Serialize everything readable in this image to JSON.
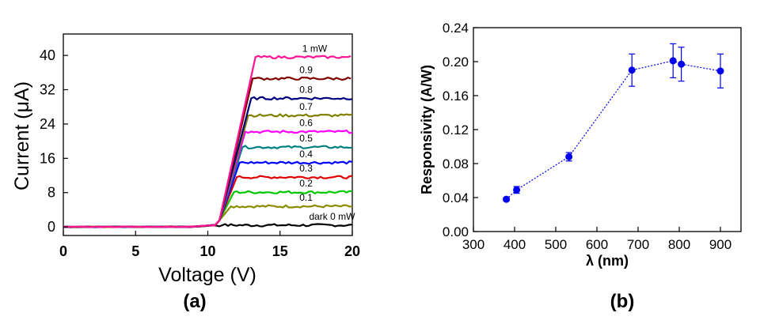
{
  "chart_data": [
    {
      "type": "line",
      "panel_label": "(a)",
      "xlabel": "Voltage (V)",
      "ylabel": "Current (μA)",
      "xlim": [
        0,
        20
      ],
      "ylim": [
        -2,
        45
      ],
      "xticks": [
        0,
        5,
        10,
        15,
        20
      ],
      "yticks": [
        0,
        8,
        16,
        24,
        32,
        40
      ],
      "grid": false,
      "onset_voltage": 10.6,
      "series": [
        {
          "name": "dark 0 mW",
          "color": "#000000",
          "plateau": 0.4,
          "step_end": 11.0
        },
        {
          "name": "0.1",
          "color": "#8c8c00",
          "plateau": 4.8,
          "step_end": 11.6
        },
        {
          "name": "0.2",
          "color": "#00c800",
          "plateau": 8.1,
          "step_end": 11.8
        },
        {
          "name": "0.3",
          "color": "#e00000",
          "plateau": 11.6,
          "step_end": 12.0
        },
        {
          "name": "0.4",
          "color": "#0000ff",
          "plateau": 15.0,
          "step_end": 12.2
        },
        {
          "name": "0.5",
          "color": "#008080",
          "plateau": 18.6,
          "step_end": 12.4
        },
        {
          "name": "0.6",
          "color": "#ff00ff",
          "plateau": 22.2,
          "step_end": 12.6
        },
        {
          "name": "0.7",
          "color": "#808000",
          "plateau": 26.0,
          "step_end": 12.8
        },
        {
          "name": "0.8",
          "color": "#000080",
          "plateau": 30.0,
          "step_end": 13.0
        },
        {
          "name": "0.9",
          "color": "#800000",
          "plateau": 34.6,
          "step_end": 13.1
        },
        {
          "name": "1 mW",
          "color": "#ff1493",
          "plateau": 39.6,
          "step_end": 13.3
        }
      ]
    },
    {
      "type": "scatter",
      "panel_label": "(b)",
      "xlabel": "λ (nm)",
      "ylabel": "Responsivity (A/W)",
      "xlim": [
        300,
        950
      ],
      "ylim": [
        0,
        0.24
      ],
      "xticks": [
        300,
        400,
        500,
        600,
        700,
        800,
        900
      ],
      "yticks": [
        "0.00",
        "0.04",
        "0.08",
        "0.12",
        "0.16",
        "0.20",
        "0.24"
      ],
      "grid": false,
      "marker_color": "#0000ee",
      "connector": "dotted",
      "x": [
        380,
        405,
        532,
        685,
        785,
        805,
        900
      ],
      "y": [
        0.038,
        0.049,
        0.088,
        0.19,
        0.201,
        0.197,
        0.189
      ],
      "error": [
        0.002,
        0.004,
        0.005,
        0.019,
        0.02,
        0.02,
        0.02
      ]
    }
  ]
}
